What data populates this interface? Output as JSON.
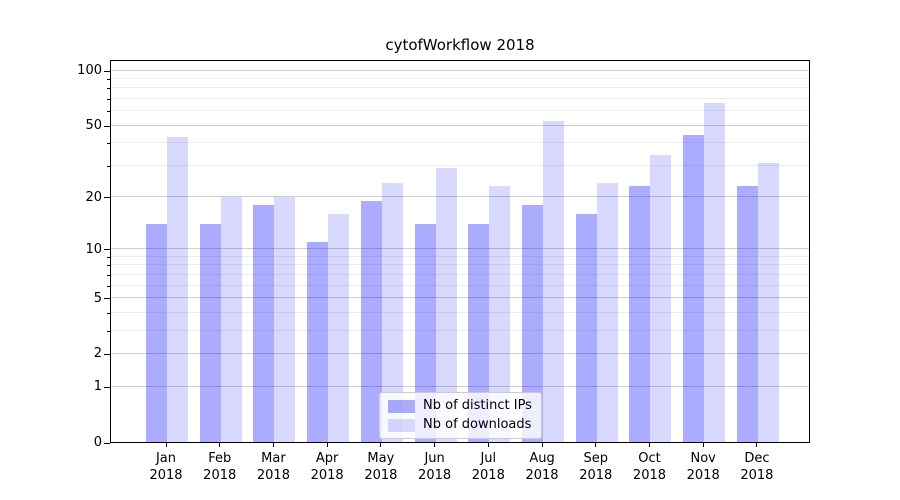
{
  "chart_data": {
    "type": "bar",
    "title": "cytofWorkflow 2018",
    "months": [
      "Jan",
      "Feb",
      "Mar",
      "Apr",
      "May",
      "Jun",
      "Jul",
      "Aug",
      "Sep",
      "Oct",
      "Nov",
      "Dec"
    ],
    "year": "2018",
    "series": [
      {
        "name": "Nb of distinct IPs",
        "color": "rgba(0,0,255,0.33)",
        "values": [
          14,
          14,
          18,
          11,
          19,
          14,
          14,
          18,
          16,
          23,
          44,
          23
        ]
      },
      {
        "name": "Nb of downloads",
        "color": "rgba(0,0,255,0.15)",
        "values": [
          43,
          20,
          20,
          16,
          24,
          29,
          23,
          53,
          24,
          34,
          66,
          31
        ]
      }
    ],
    "yscale": "log1p",
    "ylim": [
      0,
      115
    ],
    "yticks": [
      0,
      1,
      2,
      5,
      10,
      20,
      50,
      100
    ],
    "yticks_minor": [
      3,
      4,
      6,
      7,
      8,
      9,
      30,
      40,
      60,
      70,
      80,
      90
    ],
    "grid": true,
    "legend_position": "lower center",
    "colors": {
      "grid_major": "#cfcfcf",
      "grid_minor": "#ececec",
      "axis": "#000000",
      "background": "#ffffff"
    }
  }
}
